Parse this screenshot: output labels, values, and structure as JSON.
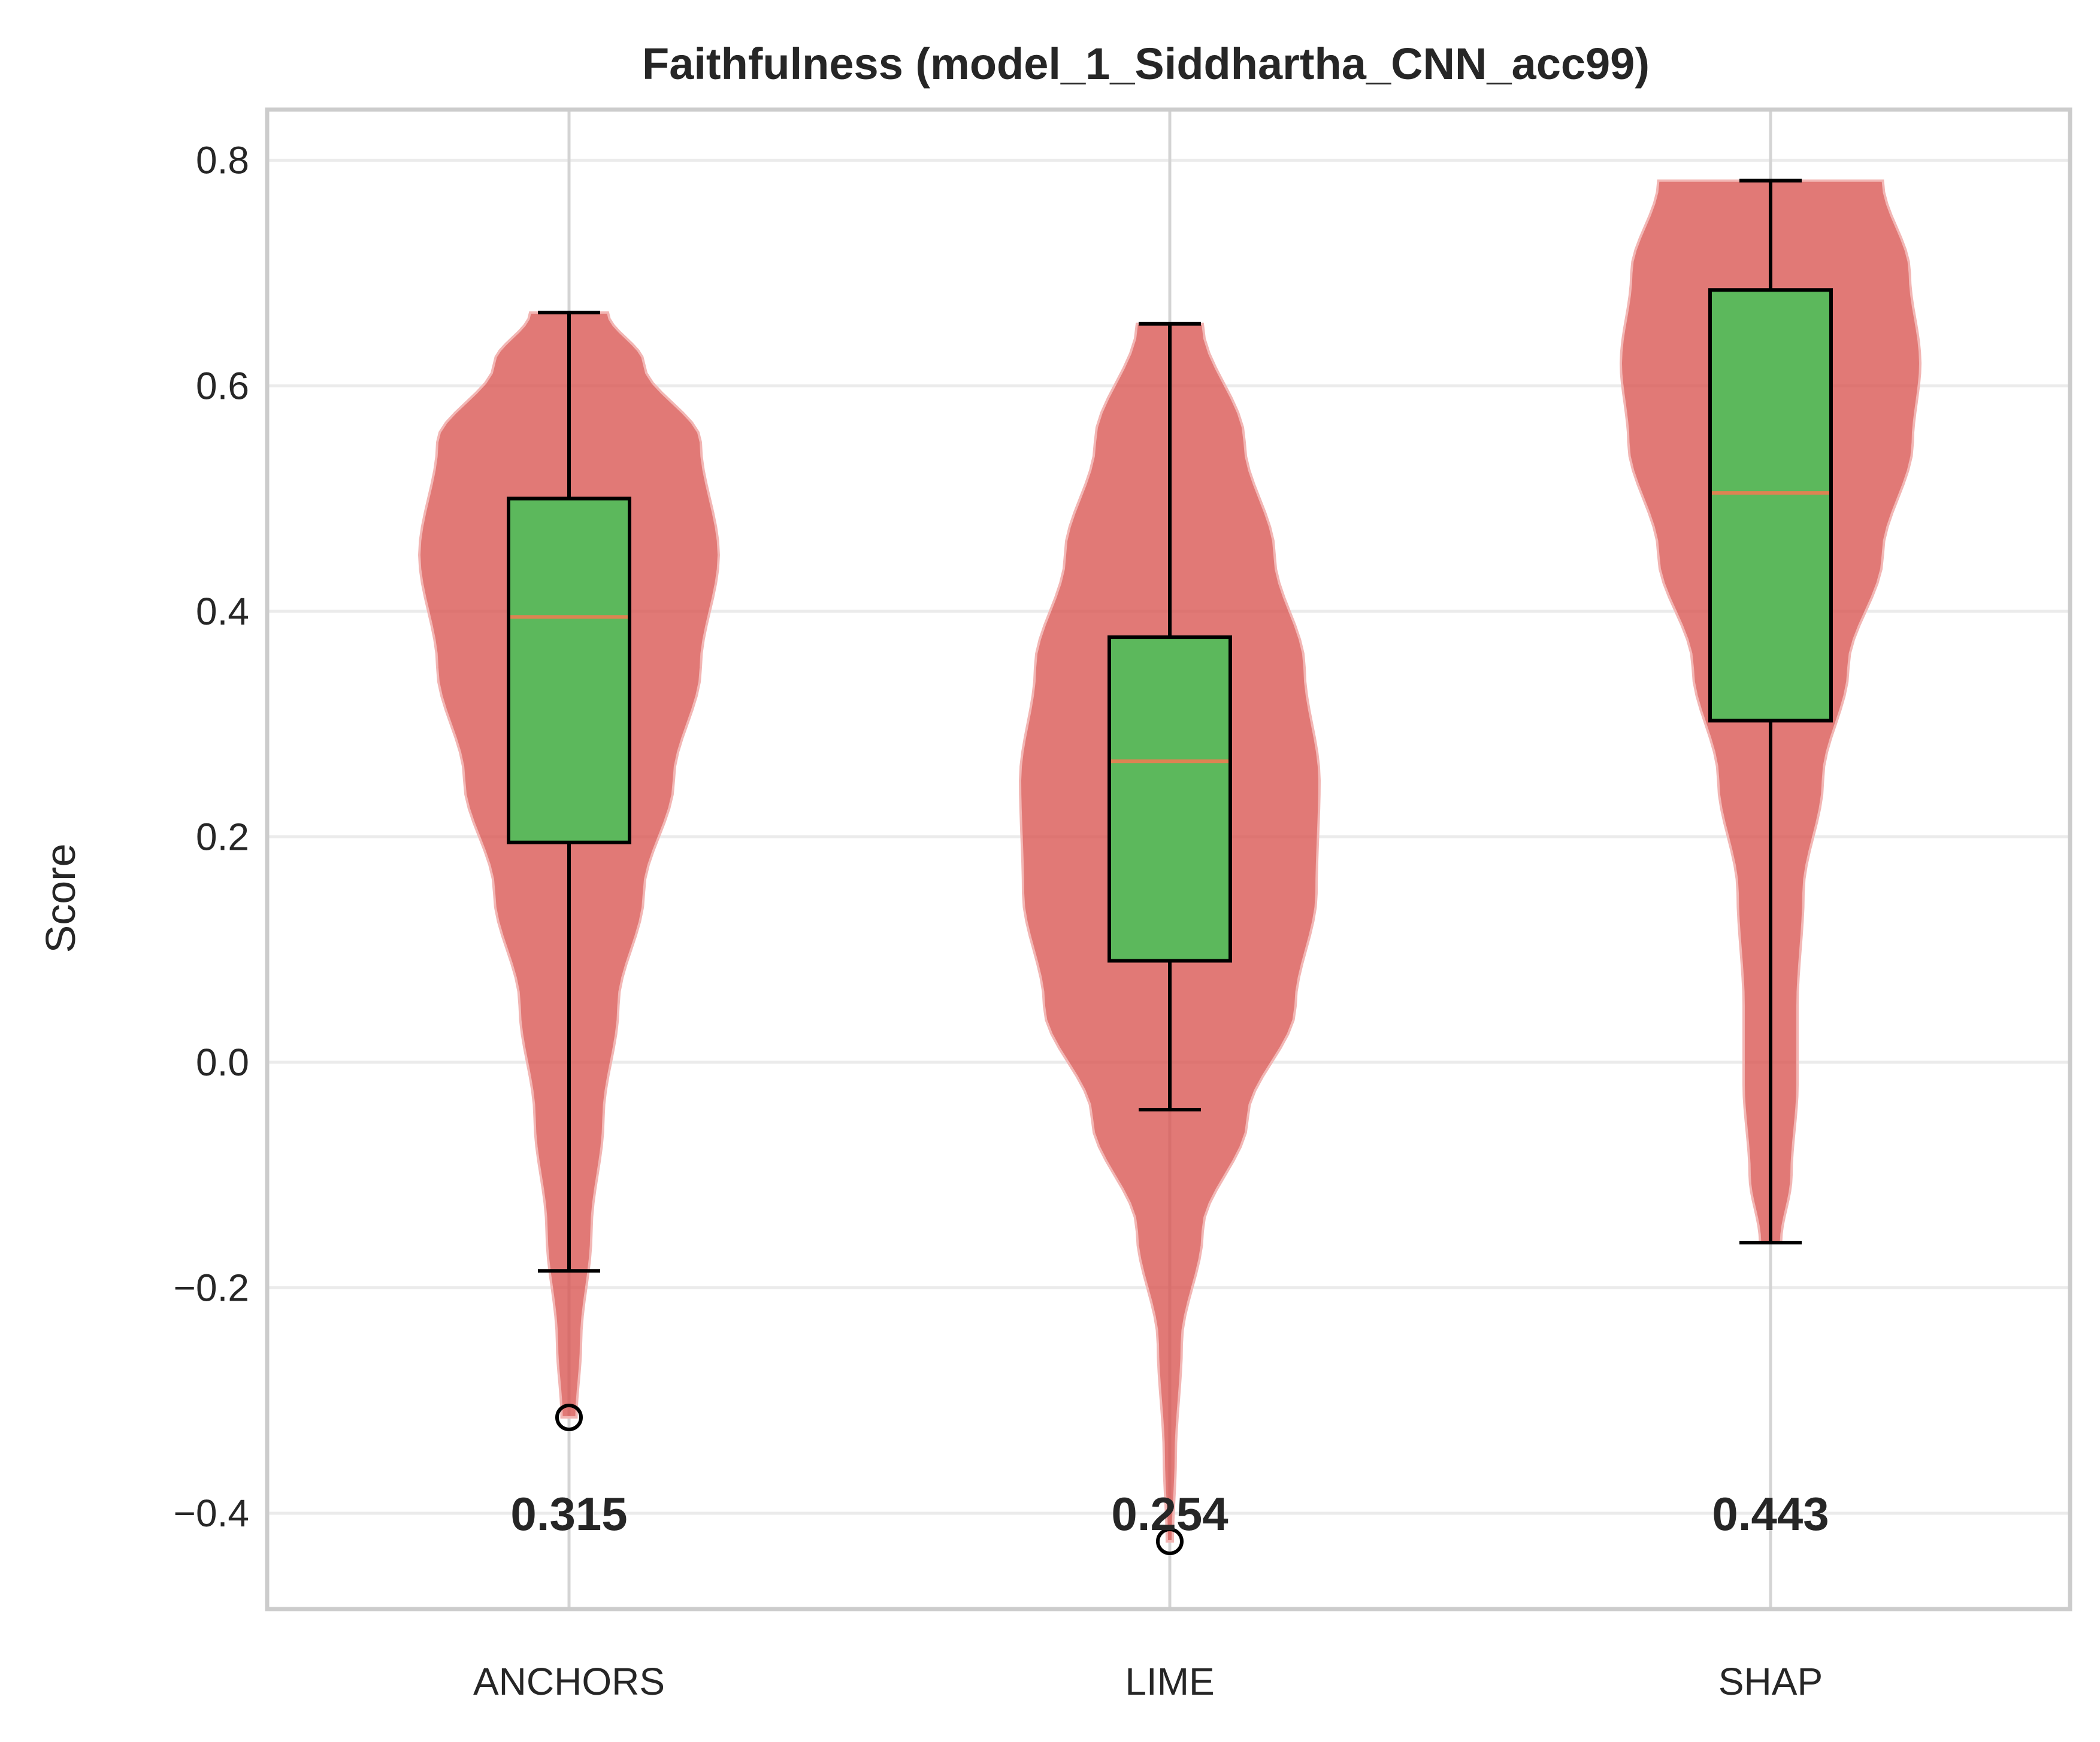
{
  "chart_data": {
    "type": "violin",
    "title": "Faithfulness (model_1_Siddhartha_CNN_acc99)",
    "xlabel": "",
    "ylabel": "Score",
    "ylim": [
      -0.485,
      0.845
    ],
    "yticks": [
      0.8,
      0.6,
      0.4,
      0.2,
      0.0,
      -0.2,
      -0.4
    ],
    "ytick_labels": [
      "0.8",
      "0.6",
      "0.4",
      "0.2",
      "0.0",
      "−0.2",
      "−0.4"
    ],
    "categories": [
      "ANCHORS",
      "LIME",
      "SHAP"
    ],
    "grid": true,
    "colors": {
      "violin": "#d9534f",
      "box": "#5cb85c",
      "median": "#dd8452",
      "grid": "#ebebeb",
      "frame": "#cccccc"
    },
    "series": [
      {
        "category": "ANCHORS",
        "mean_label": "0.315",
        "box": {
          "whisker_low": -0.185,
          "q1": 0.195,
          "median": 0.395,
          "q3": 0.5,
          "whisker_high": 0.665
        },
        "outliers": [
          -0.315
        ],
        "violin_range": [
          -0.315,
          0.665
        ],
        "violin_density": [
          [
            -0.315,
            0.05
          ],
          [
            -0.25,
            0.08
          ],
          [
            -0.15,
            0.15
          ],
          [
            -0.05,
            0.23
          ],
          [
            0.05,
            0.33
          ],
          [
            0.15,
            0.5
          ],
          [
            0.25,
            0.7
          ],
          [
            0.35,
            0.88
          ],
          [
            0.45,
            1.0
          ],
          [
            0.55,
            0.88
          ],
          [
            0.62,
            0.5
          ],
          [
            0.665,
            0.26
          ]
        ]
      },
      {
        "category": "LIME",
        "mean_label": "0.254",
        "box": {
          "whisker_low": -0.042,
          "q1": 0.09,
          "median": 0.267,
          "q3": 0.377,
          "whisker_high": 0.655
        },
        "outliers": [
          -0.425
        ],
        "violin_range": [
          -0.425,
          0.655
        ],
        "violin_density": [
          [
            -0.425,
            0.02
          ],
          [
            -0.35,
            0.04
          ],
          [
            -0.25,
            0.08
          ],
          [
            -0.15,
            0.22
          ],
          [
            -0.05,
            0.52
          ],
          [
            0.05,
            0.84
          ],
          [
            0.15,
            0.98
          ],
          [
            0.25,
            1.0
          ],
          [
            0.35,
            0.9
          ],
          [
            0.45,
            0.7
          ],
          [
            0.55,
            0.5
          ],
          [
            0.655,
            0.22
          ]
        ]
      },
      {
        "category": "SHAP",
        "mean_label": "0.443",
        "box": {
          "whisker_low": -0.16,
          "q1": 0.303,
          "median": 0.505,
          "q3": 0.685,
          "whisker_high": 0.782
        },
        "outliers": [],
        "violin_range": [
          -0.16,
          0.782
        ],
        "violin_density": [
          [
            -0.16,
            0.07
          ],
          [
            -0.1,
            0.14
          ],
          [
            -0.02,
            0.18
          ],
          [
            0.05,
            0.18
          ],
          [
            0.15,
            0.22
          ],
          [
            0.25,
            0.35
          ],
          [
            0.35,
            0.52
          ],
          [
            0.45,
            0.75
          ],
          [
            0.55,
            0.95
          ],
          [
            0.62,
            1.0
          ],
          [
            0.7,
            0.93
          ],
          [
            0.782,
            0.75
          ]
        ]
      }
    ]
  }
}
